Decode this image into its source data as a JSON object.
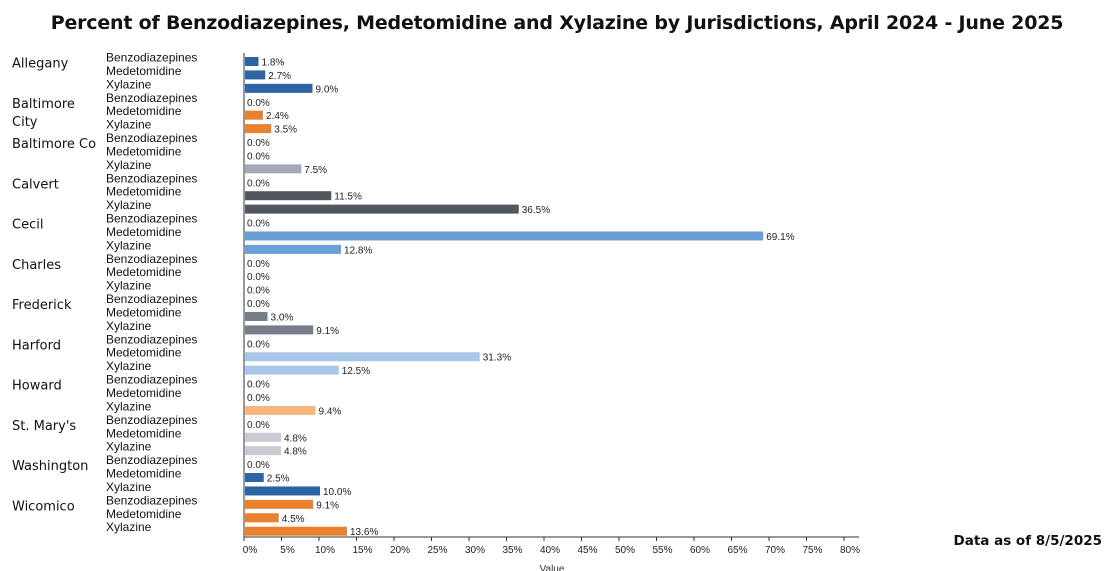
{
  "chart_data": {
    "type": "bar",
    "orientation": "horizontal",
    "title": "Percent of Benzodiazepines, Medetomidine and Xylazine by Jurisdictions, April 2024 - June 2025",
    "xlabel": "Value",
    "ylabel": "",
    "xlim": [
      0,
      80
    ],
    "xticks": [
      "0%",
      "5%",
      "10%",
      "15%",
      "20%",
      "25%",
      "30%",
      "35%",
      "40%",
      "45%",
      "50%",
      "55%",
      "60%",
      "65%",
      "70%",
      "75%",
      "80%"
    ],
    "grid": false,
    "subcategories": [
      "Benzodiazepines",
      "Medetomidine",
      "Xylazine"
    ],
    "groups": [
      {
        "name": "Allegany",
        "name_lines": [
          "Allegany"
        ],
        "color": "#2e64a3",
        "values": [
          1.8,
          2.7,
          9.0
        ],
        "labels": [
          "1.8%",
          "2.7%",
          "9.0%"
        ]
      },
      {
        "name": "Baltimore City",
        "name_lines": [
          "Baltimore",
          "City"
        ],
        "color": "#e8822e",
        "values": [
          0.0,
          2.4,
          3.5
        ],
        "labels": [
          "0.0%",
          "2.4%",
          "3.5%"
        ]
      },
      {
        "name": "Baltimore Co",
        "name_lines": [
          "Baltimore Co"
        ],
        "color": "#a3a9b6",
        "values": [
          0.0,
          0.0,
          7.5
        ],
        "labels": [
          "0.0%",
          "0.0%",
          "7.5%"
        ]
      },
      {
        "name": "Calvert",
        "name_lines": [
          "Calvert"
        ],
        "color": "#50575f",
        "values": [
          0.0,
          11.5,
          36.5
        ],
        "labels": [
          "0.0%",
          "11.5%",
          "36.5%"
        ]
      },
      {
        "name": "Cecil",
        "name_lines": [
          "Cecil"
        ],
        "color": "#6b9ed4",
        "values": [
          0.0,
          69.1,
          12.8
        ],
        "labels": [
          "0.0%",
          "69.1%",
          "12.8%"
        ]
      },
      {
        "name": "Charles",
        "name_lines": [
          "Charles"
        ],
        "color": "#9aa0aa",
        "values": [
          0.0,
          0.0,
          0.0
        ],
        "labels": [
          "0.0%",
          "0.0%",
          "0.0%"
        ]
      },
      {
        "name": "Frederick",
        "name_lines": [
          "Frederick"
        ],
        "color": "#777d86",
        "values": [
          0.0,
          3.0,
          9.1
        ],
        "labels": [
          "0.0%",
          "3.0%",
          "9.1%"
        ]
      },
      {
        "name": "Harford",
        "name_lines": [
          "Harford"
        ],
        "color": "#a8c7e8",
        "values": [
          0.0,
          31.3,
          12.5
        ],
        "labels": [
          "0.0%",
          "31.3%",
          "12.5%"
        ]
      },
      {
        "name": "Howard",
        "name_lines": [
          "Howard"
        ],
        "color": "#f6b77e",
        "values": [
          0.0,
          0.0,
          9.4
        ],
        "labels": [
          "0.0%",
          "0.0%",
          "9.4%"
        ]
      },
      {
        "name": "St. Mary's",
        "name_lines": [
          "St. Mary's"
        ],
        "color": "#c9ccd3",
        "values": [
          0.0,
          4.8,
          4.8
        ],
        "labels": [
          "0.0%",
          "4.8%",
          "4.8%"
        ]
      },
      {
        "name": "Washington",
        "name_lines": [
          "Washington"
        ],
        "color": "#2e64a3",
        "values": [
          0.0,
          2.5,
          10.0
        ],
        "labels": [
          "0.0%",
          "2.5%",
          "10.0%"
        ]
      },
      {
        "name": "Wicomico",
        "name_lines": [
          "Wicomico"
        ],
        "color": "#e8822e",
        "values": [
          9.1,
          4.5,
          13.6
        ],
        "labels": [
          "9.1%",
          "4.5%",
          "13.6%"
        ]
      }
    ]
  },
  "footnote": "Data as of 8/5/2025"
}
